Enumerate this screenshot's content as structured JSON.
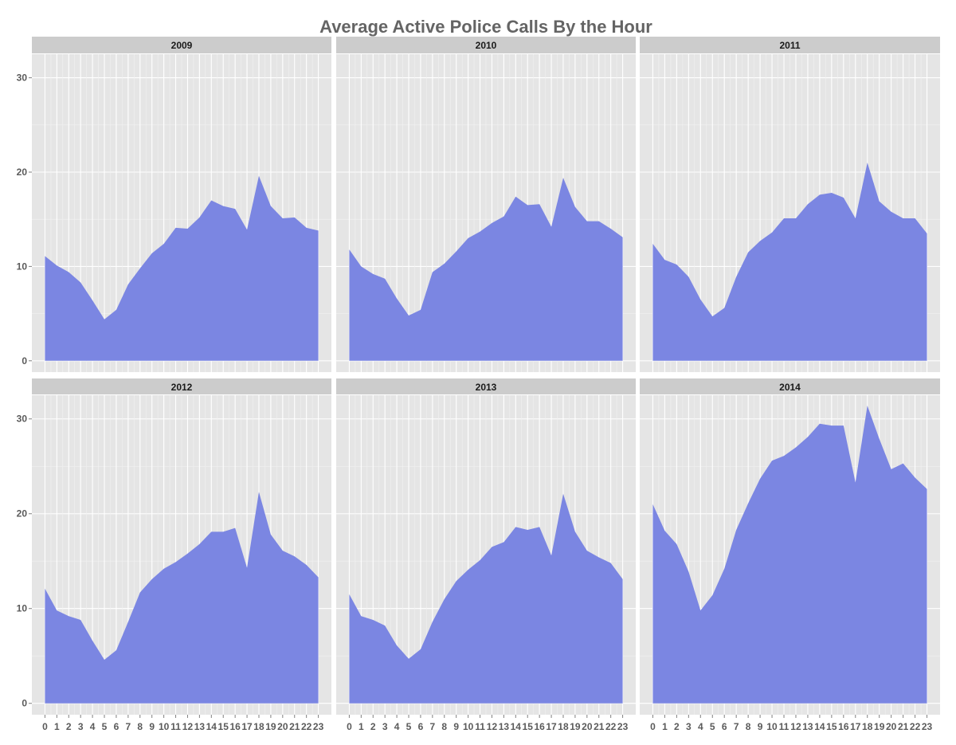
{
  "title": "Average Active Police Calls By the Hour",
  "chart_data": {
    "type": "area",
    "title": "Average Active Police Calls By the Hour",
    "xlabel": "",
    "ylabel": "",
    "facet_layout": "2 rows x 3 columns",
    "x": [
      0,
      1,
      2,
      3,
      4,
      5,
      6,
      7,
      8,
      9,
      10,
      11,
      12,
      13,
      14,
      15,
      16,
      17,
      18,
      19,
      20,
      21,
      22,
      23
    ],
    "x_tick_labels": [
      "0",
      "1",
      "2",
      "3",
      "4",
      "5",
      "6",
      "7",
      "8",
      "9",
      "10",
      "11",
      "12",
      "13",
      "14",
      "15",
      "16",
      "17",
      "18",
      "19",
      "20",
      "21",
      "22",
      "23"
    ],
    "y_ticks": [
      0,
      10,
      20,
      30
    ],
    "y_tick_labels": [
      "0",
      "10",
      "20",
      "30"
    ],
    "ylim": [
      -1.2,
      32.5
    ],
    "xlim": [
      -1.1,
      24.1
    ],
    "fill_color": "#7b86e2",
    "panel_background": "#e5e5e5",
    "strip_background": "#cccccc",
    "grid": true,
    "facets": [
      {
        "label": "2009",
        "values": [
          11.1,
          10.1,
          9.4,
          8.3,
          6.4,
          4.4,
          5.4,
          8.1,
          9.8,
          11.4,
          12.4,
          14.1,
          14.0,
          15.2,
          17.0,
          16.4,
          16.1,
          13.9,
          19.6,
          16.4,
          15.1,
          15.2,
          14.1,
          13.8
        ]
      },
      {
        "label": "2010",
        "values": [
          11.8,
          10.0,
          9.2,
          8.7,
          6.6,
          4.8,
          5.4,
          9.4,
          10.3,
          11.6,
          13.0,
          13.7,
          14.6,
          15.3,
          17.4,
          16.5,
          16.6,
          14.2,
          19.4,
          16.3,
          14.8,
          14.8,
          14.0,
          13.1
        ]
      },
      {
        "label": "2011",
        "values": [
          12.4,
          10.7,
          10.2,
          8.9,
          6.5,
          4.7,
          5.6,
          8.9,
          11.5,
          12.7,
          13.6,
          15.1,
          15.1,
          16.6,
          17.6,
          17.8,
          17.3,
          15.1,
          21.0,
          16.9,
          15.8,
          15.1,
          15.1,
          13.5
        ]
      },
      {
        "label": "2012",
        "values": [
          12.1,
          9.8,
          9.2,
          8.8,
          6.6,
          4.6,
          5.6,
          8.6,
          11.7,
          13.1,
          14.2,
          14.9,
          15.8,
          16.8,
          18.1,
          18.1,
          18.5,
          14.3,
          22.3,
          17.8,
          16.1,
          15.5,
          14.6,
          13.3
        ]
      },
      {
        "label": "2013",
        "values": [
          11.5,
          9.2,
          8.8,
          8.2,
          6.1,
          4.7,
          5.7,
          8.6,
          11.0,
          12.9,
          14.1,
          15.1,
          16.5,
          17.0,
          18.6,
          18.3,
          18.6,
          15.6,
          22.1,
          18.1,
          16.1,
          15.4,
          14.8,
          13.1
        ]
      },
      {
        "label": "2014",
        "values": [
          21.0,
          18.2,
          16.8,
          13.9,
          9.8,
          11.4,
          14.2,
          18.3,
          21.1,
          23.7,
          25.6,
          26.1,
          27.0,
          28.1,
          29.5,
          29.3,
          29.3,
          23.3,
          31.4,
          27.9,
          24.7,
          25.3,
          23.8,
          22.6
        ]
      }
    ]
  }
}
